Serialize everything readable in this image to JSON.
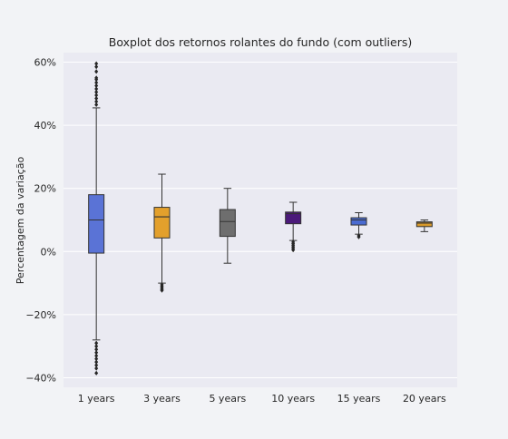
{
  "chart_data": {
    "type": "boxplot",
    "title": "Boxplot dos retornos rolantes do fundo (com outliers)",
    "xlabel": "",
    "ylabel": "Percentagem da variação",
    "ylim": [
      -43,
      63
    ],
    "yticks": [
      -40,
      -20,
      0,
      20,
      40,
      60
    ],
    "ytick_labels": [
      "−40%",
      "−20%",
      "0%",
      "20%",
      "40%",
      "60%"
    ],
    "grid": true,
    "categories": [
      "1 years",
      "3 years",
      "5 years",
      "10 years",
      "15 years",
      "20 years"
    ],
    "boxes": [
      {
        "category": "1 years",
        "color": "#5a73d6",
        "whisker_low": -28,
        "q1": -0.5,
        "median": 10,
        "q3": 18,
        "whisker_high": 45.5,
        "outliers": [
          46.5,
          47.5,
          48.5,
          49.5,
          50.5,
          51.5,
          52.5,
          53.5,
          54.5,
          55,
          57,
          58.5,
          59.5,
          -29,
          -30,
          -31,
          -32,
          -33,
          -34,
          -35,
          -36,
          -37,
          -38.5
        ]
      },
      {
        "category": "3 years",
        "color": "#e3a02c",
        "whisker_low": -10,
        "q1": 4.3,
        "median": 11,
        "q3": 14,
        "whisker_high": 24.5,
        "outliers": [
          -10.5,
          -11,
          -11.5,
          -12,
          -12.3
        ]
      },
      {
        "category": "5 years",
        "color": "#6e6e6e",
        "whisker_low": -3.7,
        "q1": 4.8,
        "median": 9.5,
        "q3": 13.3,
        "whisker_high": 20,
        "outliers": []
      },
      {
        "category": "10 years",
        "color": "#4b1a7a",
        "whisker_low": 3.5,
        "q1": 8.8,
        "median": 12,
        "q3": 12.5,
        "whisker_high": 15.6,
        "outliers": [
          3.0,
          2.5,
          2.0,
          1.5,
          1.0,
          0.5
        ]
      },
      {
        "category": "15 years",
        "color": "#4a6bd1",
        "whisker_low": 5.5,
        "q1": 8.4,
        "median": 10,
        "q3": 10.7,
        "whisker_high": 12.3,
        "outliers": [
          5.0,
          4.6
        ]
      },
      {
        "category": "20 years",
        "color": "#d99a2b",
        "whisker_low": 6.3,
        "q1": 7.9,
        "median": 9,
        "q3": 9.4,
        "whisker_high": 10,
        "outliers": []
      }
    ]
  }
}
